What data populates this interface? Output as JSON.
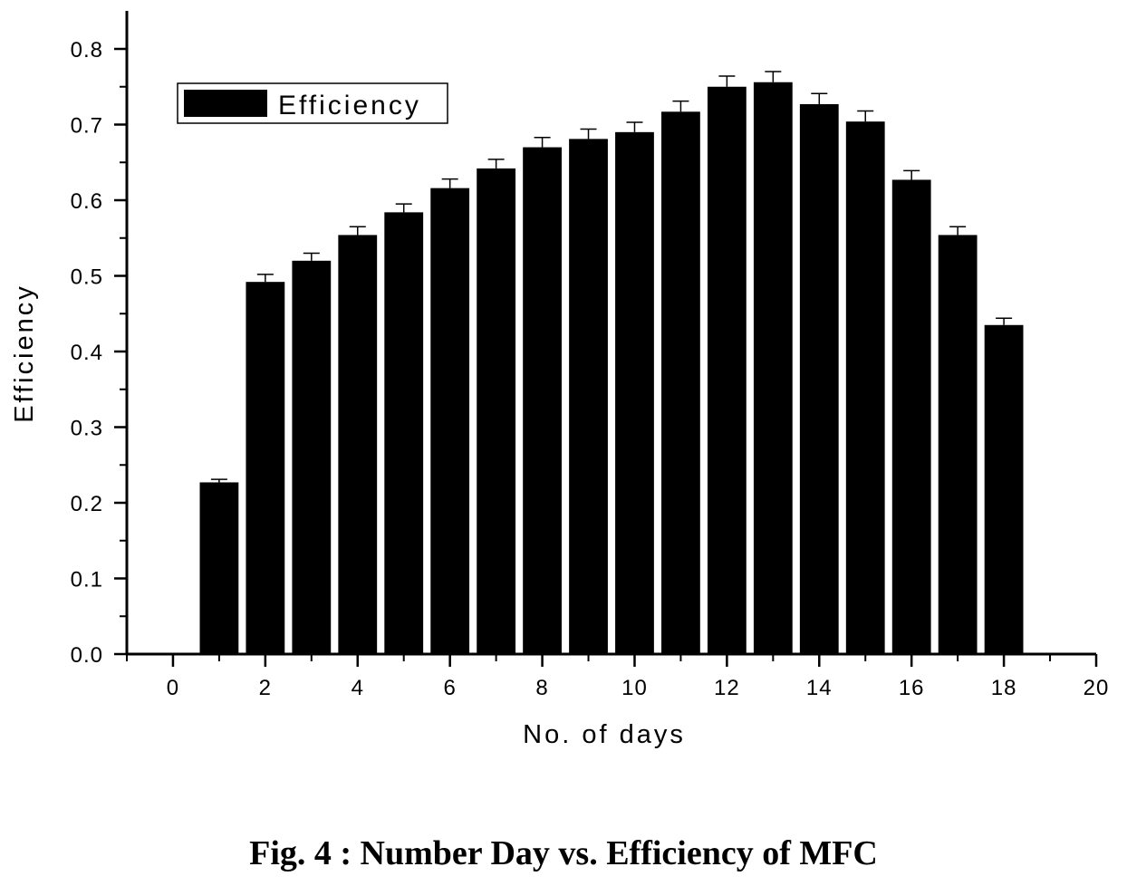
{
  "chart_data": {
    "type": "bar",
    "title": "",
    "xlabel": "No. of days",
    "ylabel": "Efficiency",
    "x": [
      1,
      2,
      3,
      4,
      5,
      6,
      7,
      8,
      9,
      10,
      11,
      12,
      13,
      14,
      15,
      16,
      17,
      18
    ],
    "series": [
      {
        "name": "Efficiency",
        "values": [
          0.227,
          0.492,
          0.52,
          0.554,
          0.584,
          0.616,
          0.642,
          0.67,
          0.681,
          0.69,
          0.717,
          0.75,
          0.756,
          0.727,
          0.704,
          0.627,
          0.554,
          0.435
        ],
        "error": [
          0.004,
          0.01,
          0.01,
          0.011,
          0.011,
          0.012,
          0.012,
          0.013,
          0.013,
          0.013,
          0.014,
          0.014,
          0.014,
          0.014,
          0.014,
          0.012,
          0.011,
          0.009
        ]
      }
    ],
    "xlim": [
      -1,
      20
    ],
    "ylim": [
      0,
      0.85
    ],
    "xticks": [
      "0",
      "2",
      "4",
      "6",
      "8",
      "10",
      "12",
      "14",
      "16",
      "18",
      "20"
    ],
    "yticks": [
      "0.0",
      "0.1",
      "0.2",
      "0.3",
      "0.4",
      "0.5",
      "0.6",
      "0.7",
      "0.8"
    ],
    "legend": {
      "position": "top-left",
      "entries": [
        "Efficiency"
      ]
    },
    "grid": false,
    "bar_color": "#000000",
    "errorbars": true
  },
  "caption": "Fig. 4 : Number Day vs. Efficiency of MFC"
}
